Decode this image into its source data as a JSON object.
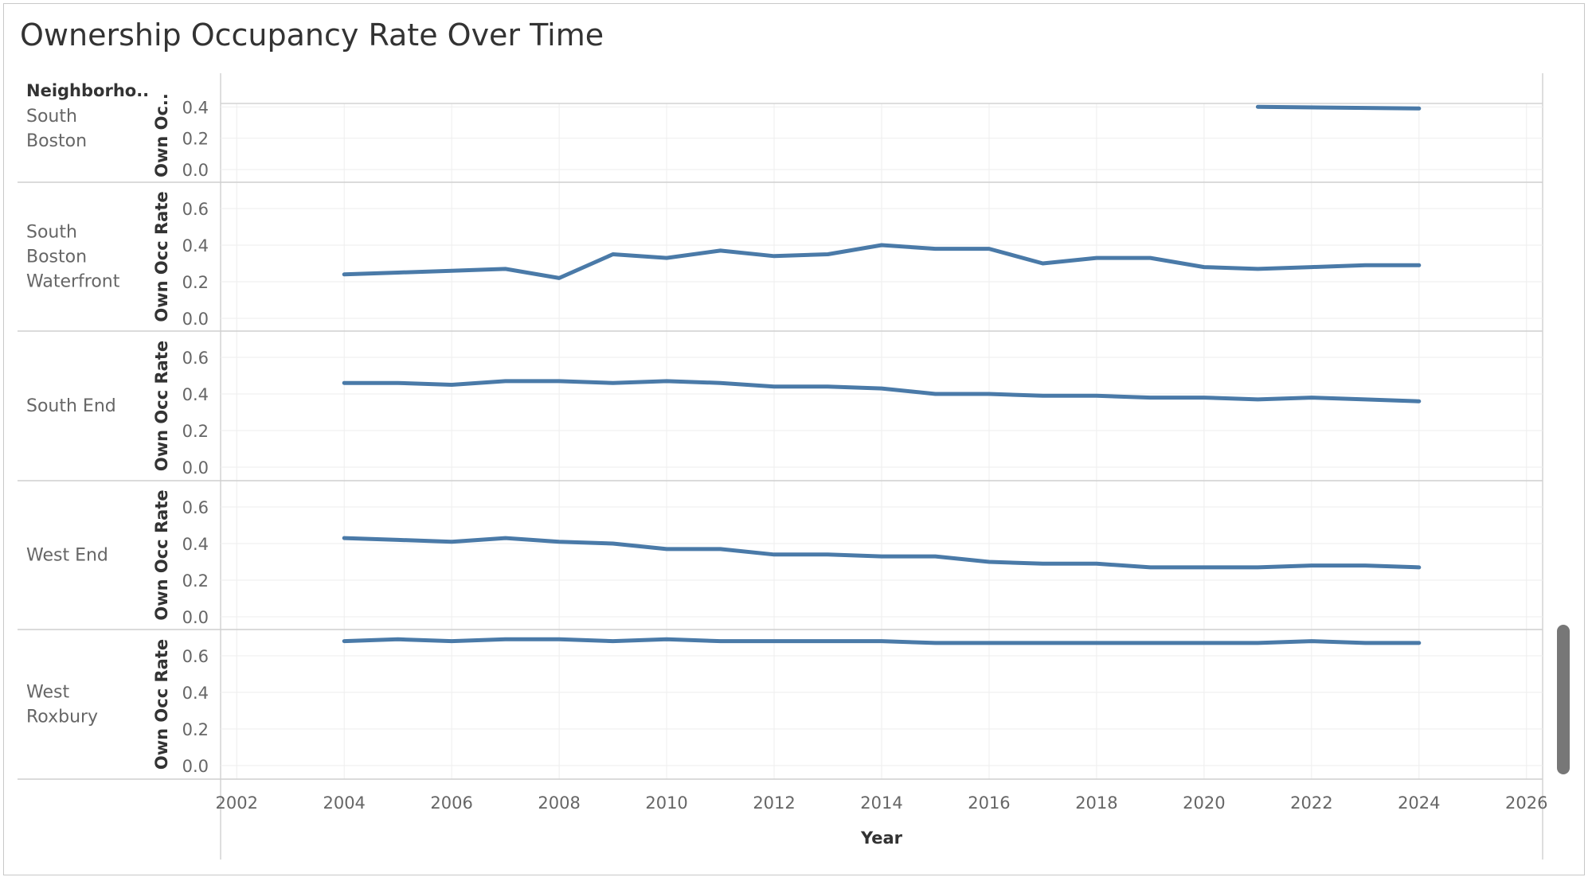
{
  "page": {
    "title": "Ownership Occupancy Rate Over Time"
  },
  "chart_data": {
    "type": "line",
    "title": "Ownership Occupancy Rate Over Time",
    "row_header": "Neighborho..",
    "xlabel": "Year",
    "ylabel": "Own Occ Rate",
    "ylabel_truncated": "Own Oc..",
    "xlim": [
      2001.7,
      2026.3
    ],
    "ylim": [
      0,
      0.7
    ],
    "x_ticks": [
      "2002",
      "2004",
      "2006",
      "2008",
      "2010",
      "2012",
      "2014",
      "2016",
      "2018",
      "2020",
      "2022",
      "2024",
      "2026"
    ],
    "y_ticks": [
      "0.0",
      "0.2",
      "0.4",
      "0.6"
    ],
    "partial_y_ticks": [
      "0.0",
      "0.2"
    ],
    "series_color": "#4a7aa8",
    "grid": true,
    "x": [
      2004,
      2005,
      2006,
      2007,
      2008,
      2009,
      2010,
      2011,
      2012,
      2013,
      2014,
      2015,
      2016,
      2017,
      2018,
      2019,
      2020,
      2021,
      2022,
      2023,
      2024
    ],
    "series": [
      {
        "name": "South Boston",
        "label_lines": [
          "South",
          "Boston"
        ],
        "partial": true,
        "values": [
          null,
          null,
          null,
          null,
          null,
          null,
          null,
          null,
          null,
          null,
          null,
          null,
          null,
          null,
          null,
          null,
          null,
          0.4,
          null,
          null,
          0.39
        ]
      },
      {
        "name": "South Boston Waterfront",
        "label_lines": [
          "South",
          "Boston",
          "Waterfront"
        ],
        "values": [
          0.24,
          0.25,
          0.26,
          0.27,
          0.22,
          0.35,
          0.33,
          0.37,
          0.34,
          0.35,
          0.4,
          0.38,
          0.38,
          0.3,
          0.33,
          0.33,
          0.28,
          0.27,
          0.28,
          0.29,
          0.29
        ]
      },
      {
        "name": "South End",
        "label_lines": [
          "South End"
        ],
        "values": [
          0.46,
          0.46,
          0.45,
          0.47,
          0.47,
          0.46,
          0.47,
          0.46,
          0.44,
          0.44,
          0.43,
          0.4,
          0.4,
          0.39,
          0.39,
          0.38,
          0.38,
          0.37,
          0.38,
          0.37,
          0.36
        ]
      },
      {
        "name": "West End",
        "label_lines": [
          "West End"
        ],
        "values": [
          0.43,
          0.42,
          0.41,
          0.43,
          0.41,
          0.4,
          0.37,
          0.37,
          0.34,
          0.34,
          0.33,
          0.33,
          0.3,
          0.29,
          0.29,
          0.27,
          0.27,
          0.27,
          0.28,
          0.28,
          0.27
        ]
      },
      {
        "name": "West Roxbury",
        "label_lines": [
          "West",
          "Roxbury"
        ],
        "values": [
          0.68,
          0.69,
          0.68,
          0.69,
          0.69,
          0.68,
          0.69,
          0.68,
          0.68,
          0.68,
          0.68,
          0.67,
          0.67,
          0.67,
          0.67,
          0.67,
          0.67,
          0.67,
          0.68,
          0.67,
          0.67
        ]
      }
    ]
  }
}
